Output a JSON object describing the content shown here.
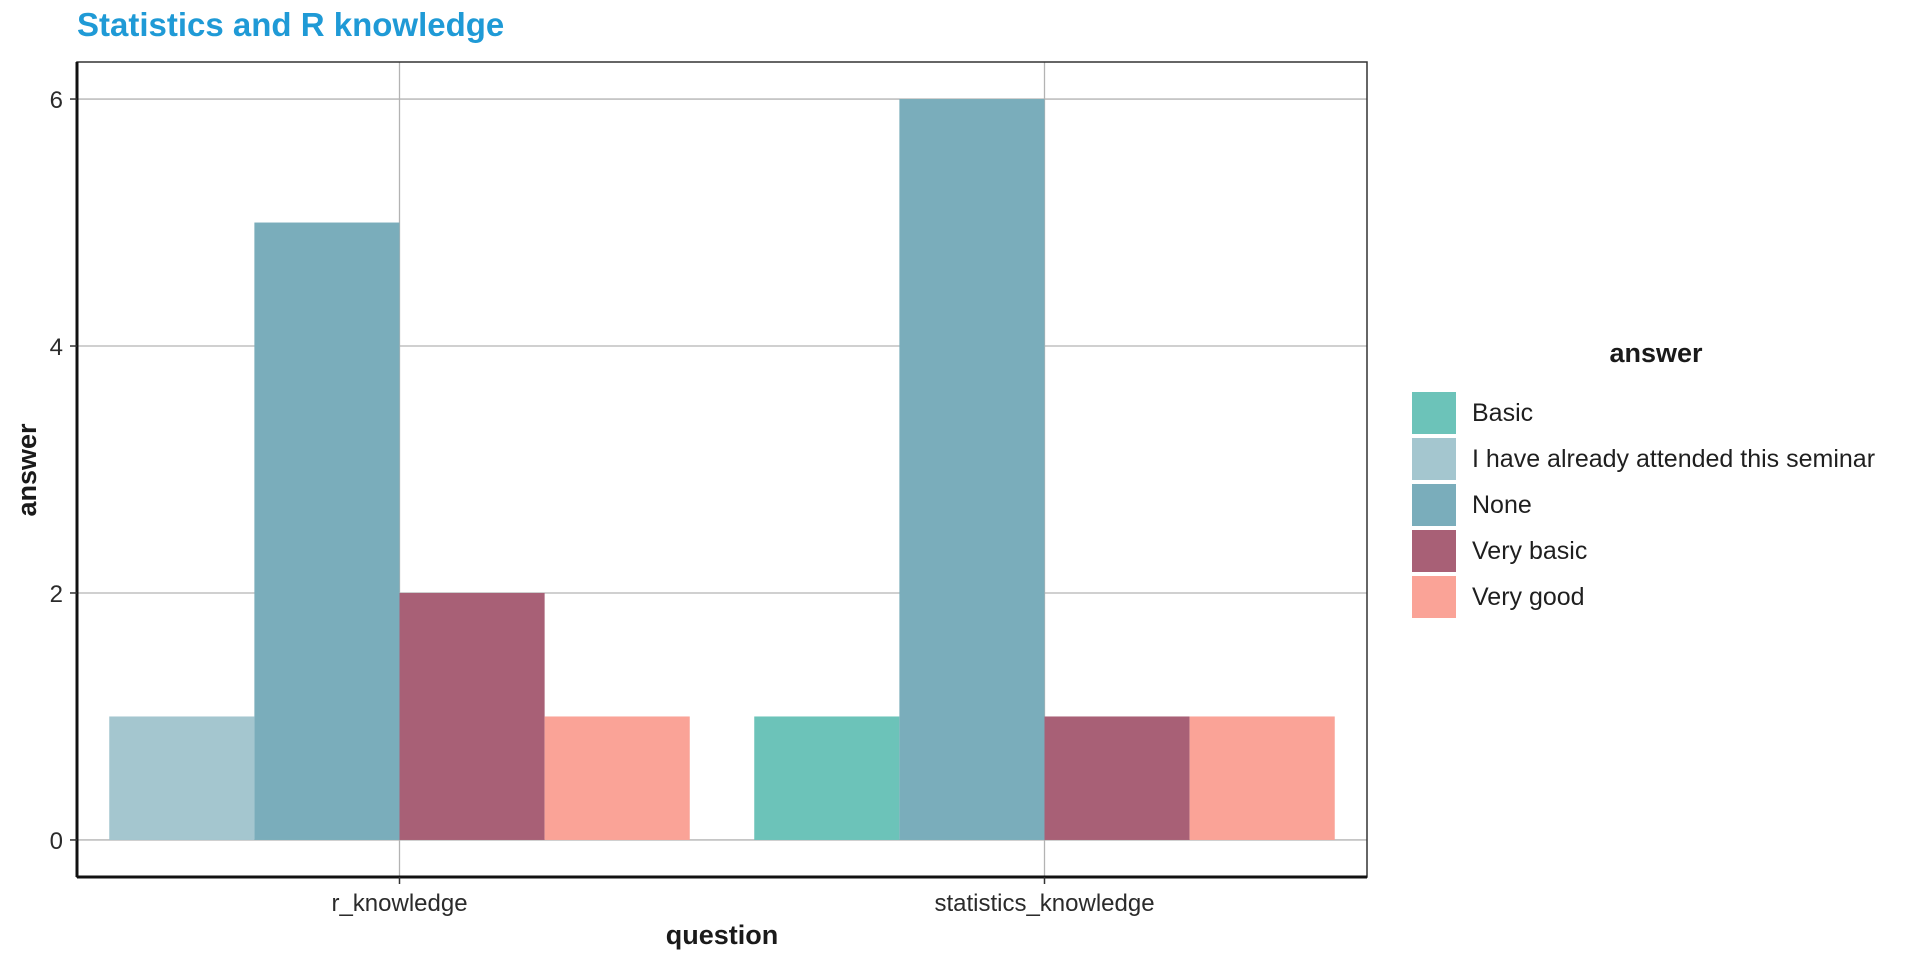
{
  "chart_data": {
    "type": "bar",
    "title": "Statistics and R knowledge",
    "xlabel": "question",
    "ylabel": "answer",
    "categories": [
      "r_knowledge",
      "statistics_knowledge"
    ],
    "series": [
      {
        "name": "Basic",
        "color": "#6cc3b9",
        "values": [
          0,
          1
        ]
      },
      {
        "name": "I have already attended this seminar",
        "color": "#a4c6cf",
        "values": [
          1,
          0
        ]
      },
      {
        "name": "None",
        "color": "#7aadbb",
        "values": [
          5,
          6
        ]
      },
      {
        "name": "Very basic",
        "color": "#a86076",
        "values": [
          2,
          1
        ]
      },
      {
        "name": "Very good",
        "color": "#faa397",
        "values": [
          1,
          1
        ]
      }
    ],
    "yticks": [
      0,
      2,
      4,
      6
    ],
    "ylim": [
      -0.3,
      6.3
    ],
    "legend_title": "answer",
    "legend_position": "right",
    "grid": true
  }
}
